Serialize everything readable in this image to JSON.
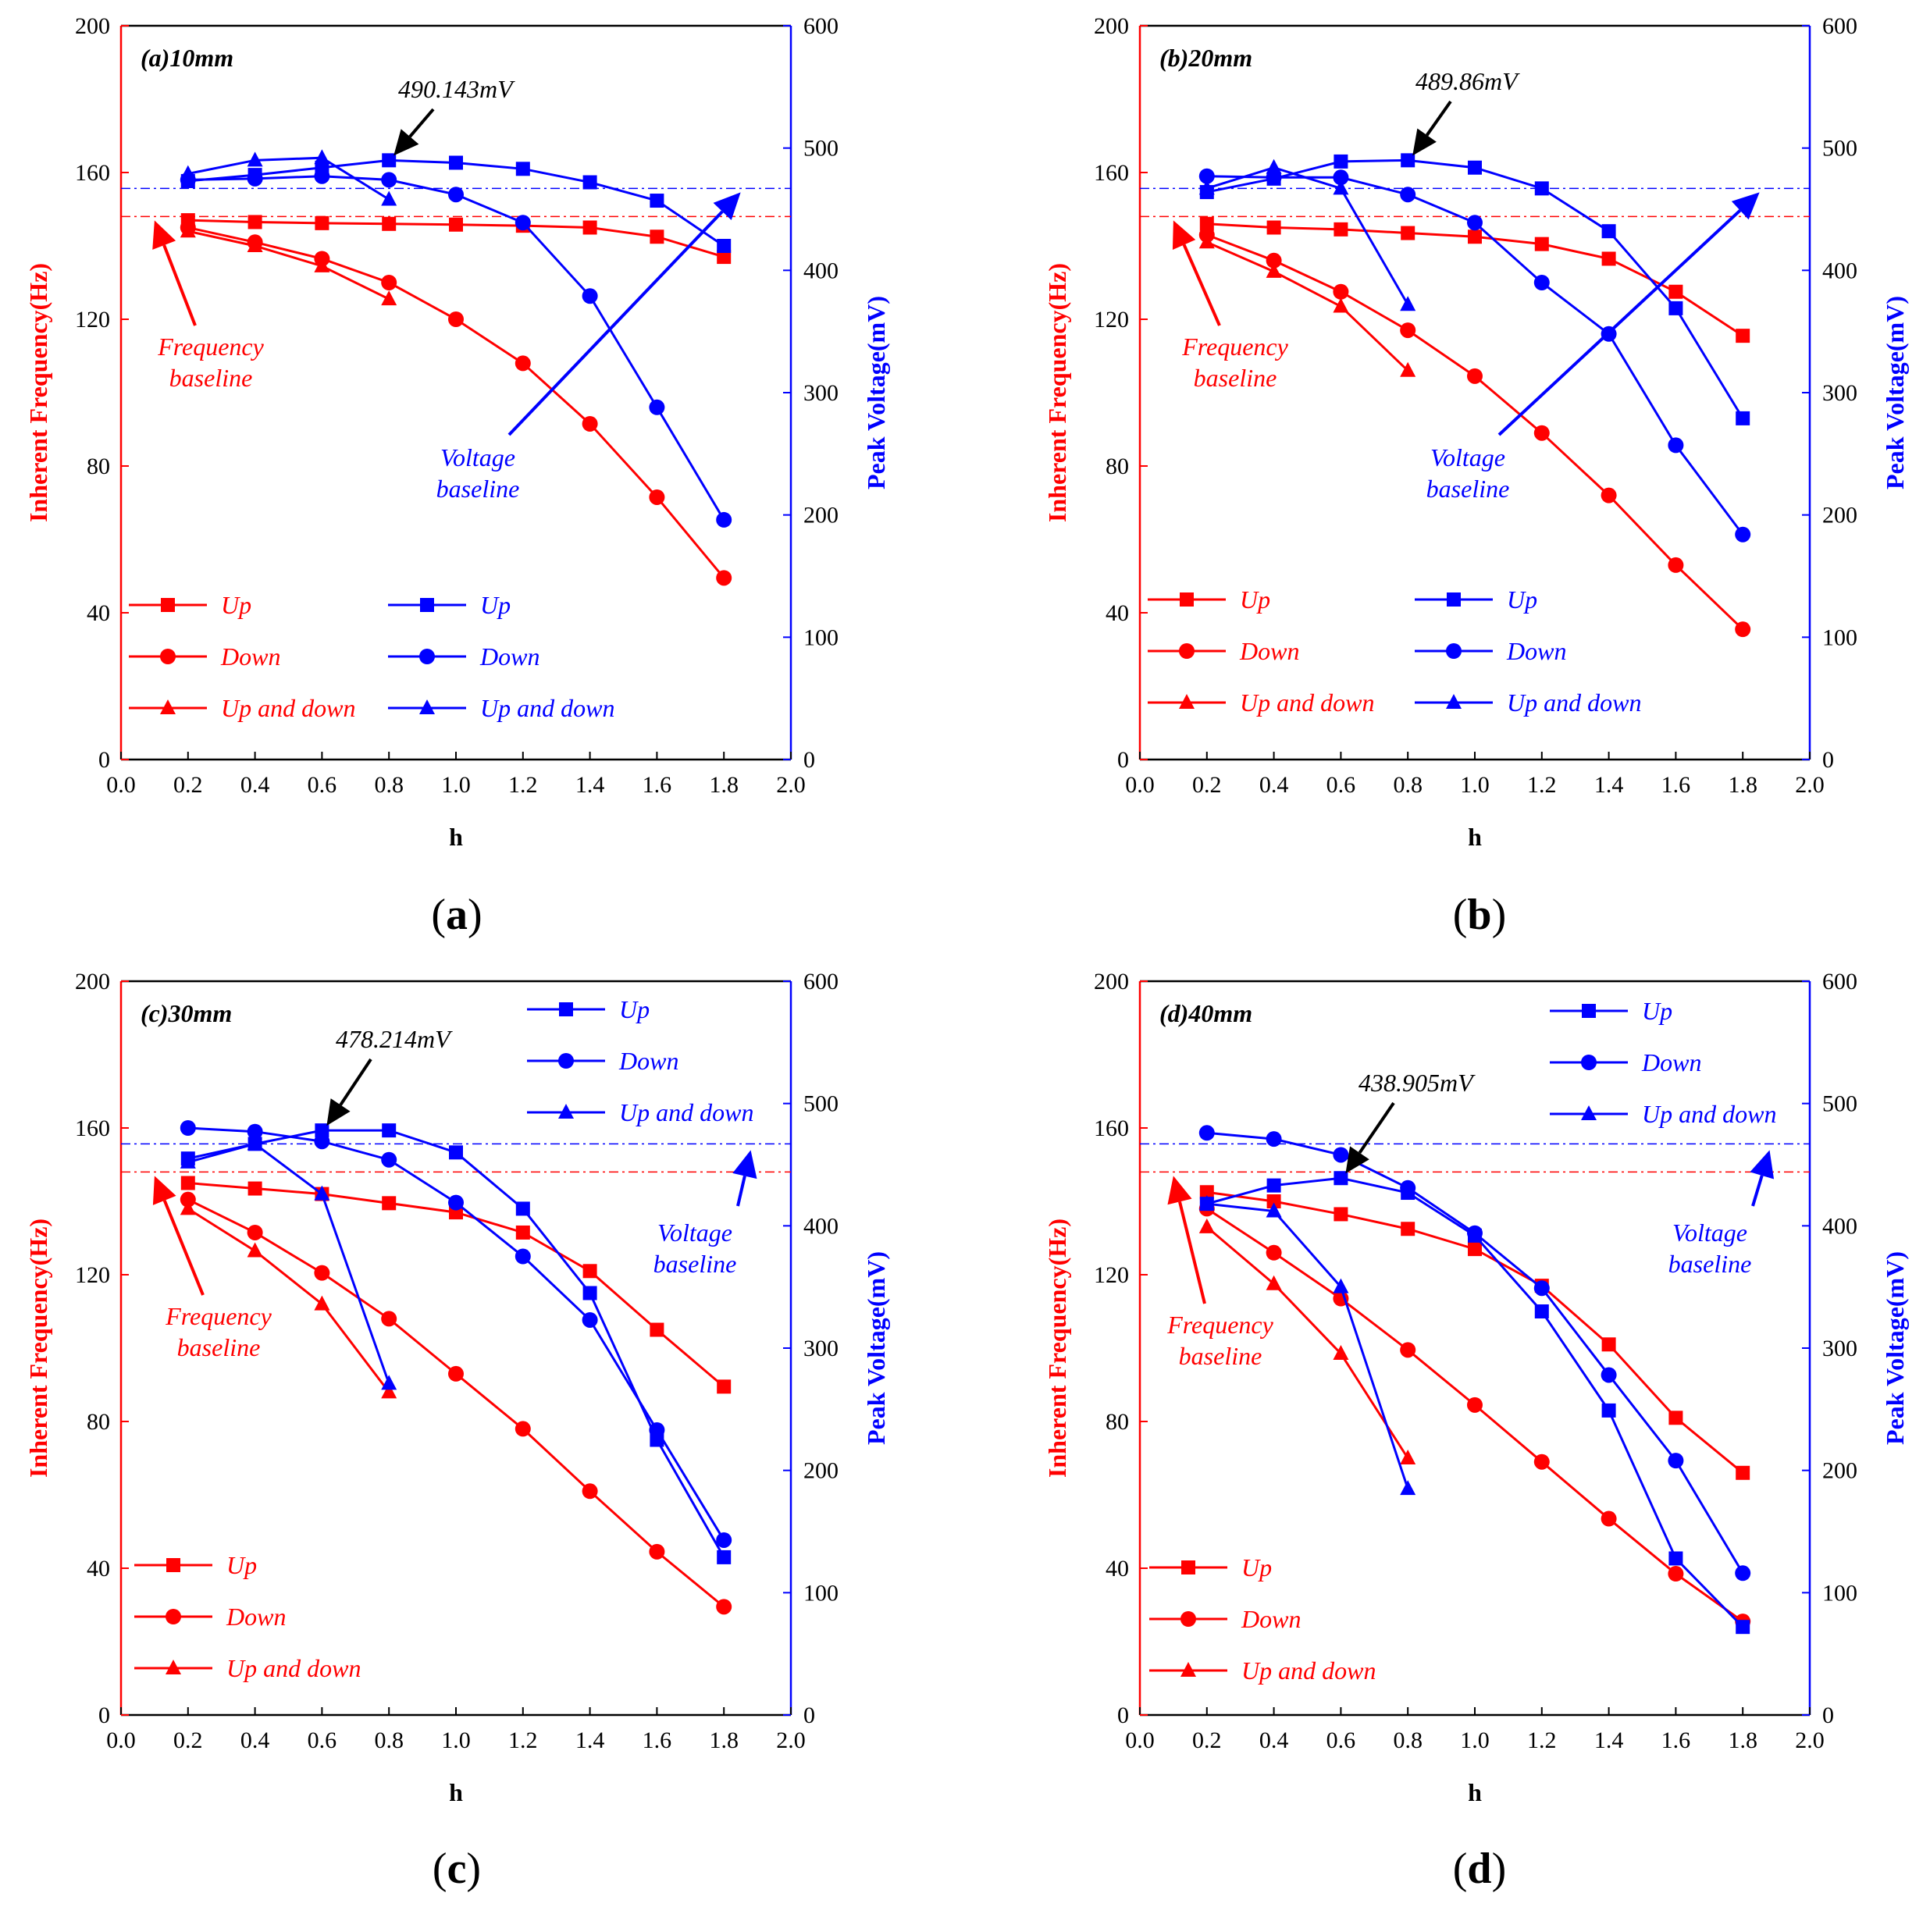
{
  "colors": {
    "frequency": "#ff0000",
    "voltage": "#0000ff",
    "axis_left": "#ff0000",
    "axis_right": "#0000ff",
    "peak_arrow": "#000000"
  },
  "chart_data": [
    {
      "type": "line",
      "title": "(a)10mm",
      "caption": "a",
      "xlabel": "h",
      "ylabel_left": "Inherent Frequency(Hz)",
      "ylabel_right": "Peak Voltage(mV)",
      "xlim": [
        0.0,
        2.0
      ],
      "ylim_left": [
        0,
        200
      ],
      "ylim_right": [
        0,
        600
      ],
      "xticks": [
        "0.0",
        "0.2",
        "0.4",
        "0.6",
        "0.8",
        "1.0",
        "1.2",
        "1.4",
        "1.6",
        "1.8",
        "2.0"
      ],
      "yticks_left": [
        "0",
        "40",
        "80",
        "120",
        "160",
        "200"
      ],
      "yticks_right": [
        "0",
        "100",
        "200",
        "300",
        "400",
        "500",
        "600"
      ],
      "frequency_baseline": 148,
      "voltage_baseline": 467,
      "frequency_baseline_label": [
        "Frequency",
        "baseline"
      ],
      "voltage_baseline_label": [
        "Voltage",
        "baseline"
      ],
      "peak_label": "490.143mV",
      "series": [
        {
          "name": "Up",
          "axis": "left",
          "marker": "square",
          "x": [
            0.2,
            0.4,
            0.6,
            0.8,
            1.0,
            1.2,
            1.4,
            1.6,
            1.8
          ],
          "values": [
            147,
            146.5,
            146.2,
            146,
            145.8,
            145.5,
            145,
            142.5,
            137
          ]
        },
        {
          "name": "Down",
          "axis": "left",
          "marker": "circle",
          "x": [
            0.2,
            0.4,
            0.6,
            0.8,
            1.0,
            1.2,
            1.4,
            1.6,
            1.8
          ],
          "values": [
            145,
            141,
            136.5,
            130,
            120,
            108,
            91.5,
            71.5,
            49.5
          ]
        },
        {
          "name": "Up and down",
          "axis": "left",
          "marker": "triangle",
          "x": [
            0.2,
            0.4,
            0.6,
            0.8
          ],
          "values": [
            144,
            140,
            134.5,
            125.5
          ]
        },
        {
          "name": "Up",
          "axis": "right",
          "marker": "square",
          "x": [
            0.2,
            0.4,
            0.6,
            0.8,
            1.0,
            1.2,
            1.4,
            1.6,
            1.8
          ],
          "values": [
            473,
            478,
            484,
            490,
            488,
            483,
            472,
            457,
            420
          ]
        },
        {
          "name": "Down",
          "axis": "right",
          "marker": "circle",
          "x": [
            0.2,
            0.4,
            0.6,
            0.8,
            1.0,
            1.2,
            1.4,
            1.6,
            1.8
          ],
          "values": [
            474,
            475,
            477,
            474,
            462,
            439,
            379,
            288,
            196
          ]
        },
        {
          "name": "Up and down",
          "axis": "right",
          "marker": "triangle",
          "x": [
            0.2,
            0.4,
            0.6,
            0.8
          ],
          "values": [
            479,
            490,
            492,
            458
          ]
        }
      ]
    },
    {
      "type": "line",
      "title": "(b)20mm",
      "caption": "b",
      "xlabel": "h",
      "ylabel_left": "Inherent Frequency(Hz)",
      "ylabel_right": "Peak Voltage(mV)",
      "xlim": [
        0.0,
        2.0
      ],
      "ylim_left": [
        0,
        200
      ],
      "ylim_right": [
        0,
        600
      ],
      "xticks": [
        "0.0",
        "0.2",
        "0.4",
        "0.6",
        "0.8",
        "1.0",
        "1.2",
        "1.4",
        "1.6",
        "1.8",
        "2.0"
      ],
      "yticks_left": [
        "0",
        "40",
        "80",
        "120",
        "160",
        "200"
      ],
      "yticks_right": [
        "0",
        "100",
        "200",
        "300",
        "400",
        "500",
        "600"
      ],
      "frequency_baseline": 148,
      "voltage_baseline": 467,
      "frequency_baseline_label": [
        "Frequency",
        "baseline"
      ],
      "voltage_baseline_label": [
        "Voltage",
        "baseline"
      ],
      "peak_label": "489.86mV",
      "series": [
        {
          "name": "Up",
          "axis": "left",
          "marker": "square",
          "x": [
            0.2,
            0.4,
            0.6,
            0.8,
            1.0,
            1.2,
            1.4,
            1.6,
            1.8
          ],
          "values": [
            146,
            145,
            144.5,
            143.5,
            142.5,
            140.5,
            136.5,
            127.5,
            115.5
          ]
        },
        {
          "name": "Down",
          "axis": "left",
          "marker": "circle",
          "x": [
            0.2,
            0.4,
            0.6,
            0.8,
            1.0,
            1.2,
            1.4,
            1.6,
            1.8
          ],
          "values": [
            143,
            136,
            127.5,
            117,
            104.5,
            89,
            72,
            53,
            35.5
          ]
        },
        {
          "name": "Up and down",
          "axis": "left",
          "marker": "triangle",
          "x": [
            0.2,
            0.4,
            0.6,
            0.8
          ],
          "values": [
            141,
            133,
            123.5,
            106
          ]
        },
        {
          "name": "Up",
          "axis": "right",
          "marker": "square",
          "x": [
            0.2,
            0.4,
            0.6,
            0.8,
            1.0,
            1.2,
            1.4,
            1.6,
            1.8
          ],
          "values": [
            464,
            475,
            489,
            490,
            484,
            467,
            432,
            369,
            279
          ]
        },
        {
          "name": "Down",
          "axis": "right",
          "marker": "circle",
          "x": [
            0.2,
            0.4,
            0.6,
            0.8,
            1.0,
            1.2,
            1.4,
            1.6,
            1.8
          ],
          "values": [
            477,
            476,
            476,
            462,
            439,
            390,
            348,
            257,
            184
          ]
        },
        {
          "name": "Up and down",
          "axis": "right",
          "marker": "triangle",
          "x": [
            0.2,
            0.4,
            0.6,
            0.8
          ],
          "values": [
            467,
            484,
            467,
            372
          ]
        }
      ]
    },
    {
      "type": "line",
      "title": "(c)30mm",
      "caption": "c",
      "xlabel": "h",
      "ylabel_left": "Inherent Frequency(Hz)",
      "ylabel_right": "Peak Voltage(mV)",
      "xlim": [
        0.0,
        2.0
      ],
      "ylim_left": [
        0,
        200
      ],
      "ylim_right": [
        0,
        600
      ],
      "xticks": [
        "0.0",
        "0.2",
        "0.4",
        "0.6",
        "0.8",
        "1.0",
        "1.2",
        "1.4",
        "1.6",
        "1.8",
        "2.0"
      ],
      "yticks_left": [
        "0",
        "40",
        "80",
        "120",
        "160",
        "200"
      ],
      "yticks_right": [
        "0",
        "100",
        "200",
        "300",
        "400",
        "500",
        "600"
      ],
      "frequency_baseline": 148,
      "voltage_baseline": 467,
      "frequency_baseline_label": [
        "Frequency",
        "baseline"
      ],
      "voltage_baseline_label": [
        "Voltage",
        "baseline"
      ],
      "peak_label": "478.214mV",
      "series": [
        {
          "name": "Up",
          "axis": "left",
          "marker": "square",
          "x": [
            0.2,
            0.4,
            0.6,
            0.8,
            1.0,
            1.2,
            1.4,
            1.6,
            1.8
          ],
          "values": [
            145,
            143.5,
            142,
            139.5,
            137,
            131.5,
            121,
            105,
            89.5
          ]
        },
        {
          "name": "Down",
          "axis": "left",
          "marker": "circle",
          "x": [
            0.2,
            0.4,
            0.6,
            0.8,
            1.0,
            1.2,
            1.4,
            1.6,
            1.8
          ],
          "values": [
            140.5,
            131.5,
            120.5,
            108,
            93,
            78,
            61,
            44.5,
            29.5
          ]
        },
        {
          "name": "Up and down",
          "axis": "left",
          "marker": "triangle",
          "x": [
            0.2,
            0.4,
            0.6,
            0.8
          ],
          "values": [
            138,
            126.5,
            112,
            88
          ]
        },
        {
          "name": "Up",
          "axis": "right",
          "marker": "square",
          "x": [
            0.2,
            0.4,
            0.6,
            0.8,
            1.0,
            1.2,
            1.4,
            1.6,
            1.8
          ],
          "values": [
            455,
            467,
            478,
            478,
            460,
            414,
            345,
            225,
            129
          ]
        },
        {
          "name": "Down",
          "axis": "right",
          "marker": "circle",
          "x": [
            0.2,
            0.4,
            0.6,
            0.8,
            1.0,
            1.2,
            1.4,
            1.6,
            1.8
          ],
          "values": [
            480,
            477,
            469,
            454,
            419,
            375,
            323,
            233,
            143
          ]
        },
        {
          "name": "Up and down",
          "axis": "right",
          "marker": "triangle",
          "x": [
            0.2,
            0.4,
            0.6,
            0.8
          ],
          "values": [
            452,
            467,
            426,
            271
          ]
        }
      ]
    },
    {
      "type": "line",
      "title": "(d)40mm",
      "caption": "d",
      "xlabel": "h",
      "ylabel_left": "Inherent Frequency(Hz)",
      "ylabel_right": "Peak Voltage(mV)",
      "xlim": [
        0.0,
        2.0
      ],
      "ylim_left": [
        0,
        200
      ],
      "ylim_right": [
        0,
        600
      ],
      "xticks": [
        "0.0",
        "0.2",
        "0.4",
        "0.6",
        "0.8",
        "1.0",
        "1.2",
        "1.4",
        "1.6",
        "1.8",
        "2.0"
      ],
      "yticks_left": [
        "0",
        "40",
        "80",
        "120",
        "160",
        "200"
      ],
      "yticks_right": [
        "0",
        "100",
        "200",
        "300",
        "400",
        "500",
        "600"
      ],
      "frequency_baseline": 148,
      "voltage_baseline": 467,
      "frequency_baseline_label": [
        "Frequency",
        "baseline"
      ],
      "voltage_baseline_label": [
        "Voltage",
        "baseline"
      ],
      "peak_label": "438.905mV",
      "series": [
        {
          "name": "Up",
          "axis": "left",
          "marker": "square",
          "x": [
            0.2,
            0.4,
            0.6,
            0.8,
            1.0,
            1.2,
            1.4,
            1.6,
            1.8
          ],
          "values": [
            142.5,
            140,
            136.5,
            132.5,
            127,
            117,
            101,
            81,
            66
          ]
        },
        {
          "name": "Down",
          "axis": "left",
          "marker": "circle",
          "x": [
            0.2,
            0.4,
            0.6,
            0.8,
            1.0,
            1.2,
            1.4,
            1.6,
            1.8
          ],
          "values": [
            138,
            126,
            113.5,
            99.5,
            84.5,
            69,
            53.5,
            38.5,
            25.5
          ]
        },
        {
          "name": "Up and down",
          "axis": "left",
          "marker": "triangle",
          "x": [
            0.2,
            0.4,
            0.6,
            0.8
          ],
          "values": [
            133,
            117.5,
            98.5,
            70
          ]
        },
        {
          "name": "Up",
          "axis": "right",
          "marker": "square",
          "x": [
            0.2,
            0.4,
            0.6,
            0.8,
            1.0,
            1.2,
            1.4,
            1.6,
            1.8
          ],
          "values": [
            418,
            433,
            439,
            427,
            392,
            330,
            249,
            128,
            72
          ]
        },
        {
          "name": "Down",
          "axis": "right",
          "marker": "circle",
          "x": [
            0.2,
            0.4,
            0.6,
            0.8,
            1.0,
            1.2,
            1.4,
            1.6,
            1.8
          ],
          "values": [
            476,
            471,
            458,
            431,
            394,
            349,
            278,
            208,
            116
          ]
        },
        {
          "name": "Up and down",
          "axis": "right",
          "marker": "triangle",
          "x": [
            0.2,
            0.4,
            0.6,
            0.8
          ],
          "values": [
            418,
            412,
            350,
            185
          ]
        }
      ]
    }
  ]
}
